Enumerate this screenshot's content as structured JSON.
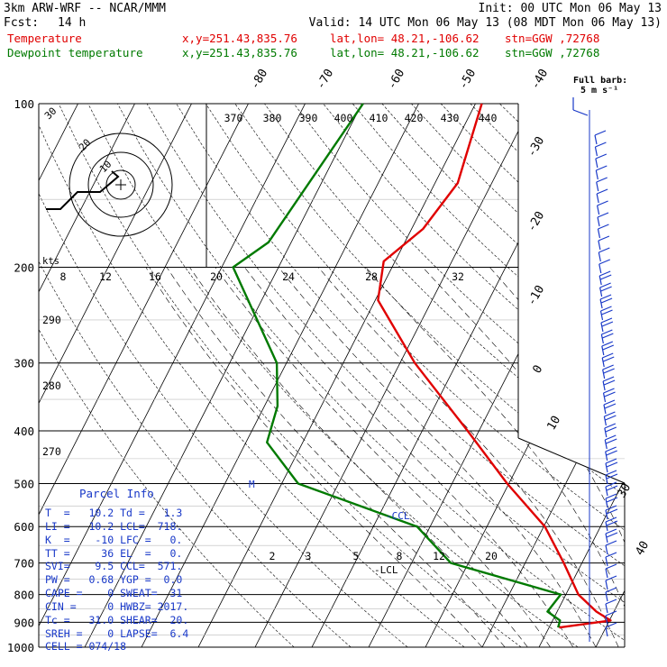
{
  "header": {
    "model": "3km ARW-WRF -- NCAR/MMM",
    "init": "Init: 00 UTC Mon 06 May 13",
    "fcst_label": "Fcst:",
    "fcst_value": "14 h",
    "valid": "Valid: 14 UTC Mon 06 May 13 (08 MDT Mon 06 May 13)",
    "legend": [
      {
        "label": "Temperature",
        "xy": "x,y=251.43,835.76",
        "latlon": "lat,lon= 48.21,-106.62",
        "stn": "stn=GGW ,72768",
        "color": "#e00000"
      },
      {
        "label": "Dewpoint temperature",
        "xy": "x,y=251.43,835.76",
        "latlon": "lat,lon= 48.21,-106.62",
        "stn": "stn=GGW ,72768",
        "color": "#007a00"
      }
    ]
  },
  "barb_legend": {
    "line1": "Full barb:",
    "line2": "5 m s⁻¹"
  },
  "hodograph": {
    "units": "kts",
    "ring_labels": [
      "10",
      "20",
      "30"
    ]
  },
  "chart_data": {
    "type": "line",
    "title": "",
    "xlabel": "",
    "ylabel": "",
    "pressure_levels": [
      100,
      200,
      300,
      400,
      500,
      600,
      700,
      800,
      900,
      1000
    ],
    "pressure_labels": [
      "100",
      "200",
      "300",
      "400",
      "500",
      "600",
      "700",
      "800",
      "900",
      "1000"
    ],
    "isotherm_labels": [
      "-80",
      "-70",
      "-60",
      "-50",
      "-40",
      "-30",
      "-20",
      "-10",
      "0",
      "10",
      "30",
      "40"
    ],
    "theta_labels": [
      "370",
      "380",
      "390",
      "400",
      "410",
      "420",
      "430",
      "440"
    ],
    "mixing_ratio_labels_top": [
      "8",
      "12",
      "16",
      "20",
      "24",
      "28",
      "32"
    ],
    "mixing_ratio_labels_low": [
      "2",
      "3",
      "5",
      "8",
      "12",
      "20"
    ],
    "left_theta_labels": [
      "290",
      "280",
      "270"
    ],
    "annotations": [
      "-CCL",
      "-LCL",
      "M"
    ],
    "series": [
      {
        "name": "Temperature",
        "color": "#e00000",
        "points": [
          [
            100,
            -58.9
          ],
          [
            140,
            -56.0
          ],
          [
            170,
            -58.0
          ],
          [
            195,
            -62.0
          ],
          [
            230,
            -59.5
          ],
          [
            300,
            -47.4
          ],
          [
            400,
            -32.0
          ],
          [
            500,
            -20.3
          ],
          [
            600,
            -9.8
          ],
          [
            700,
            -3.2
          ],
          [
            800,
            2.2
          ],
          [
            860,
            6.9
          ],
          [
            893,
            10.2
          ],
          [
            920,
            1.8
          ]
        ]
      },
      {
        "name": "Dewpoint temperature",
        "color": "#007a00",
        "points": [
          [
            100,
            -79.8
          ],
          [
            180,
            -84.0
          ],
          [
            200,
            -88.0
          ],
          [
            300,
            -71.7
          ],
          [
            360,
            -67.7
          ],
          [
            420,
            -66.3
          ],
          [
            500,
            -57.1
          ],
          [
            600,
            -32.3
          ],
          [
            700,
            -23.1
          ],
          [
            800,
            -0.9
          ],
          [
            860,
            -1.7
          ],
          [
            893,
            1.3
          ],
          [
            920,
            1.6
          ]
        ]
      }
    ]
  },
  "parcel": {
    "title": "Parcel Info",
    "rows": [
      "T  =   10.2 Td =   1.3",
      "LI =   10.2 LCL=  718.",
      "K  =    -10 LFC =   0.",
      "TT =     36 EL  =   0.",
      "SVI=    9.5 CCL=  571.",
      "PW =   0.68 YGP =  0.0",
      "CAPE =    0 SWEAT=  31",
      "CIN =     0 HWBZ= 2017.",
      "Tc =   31.0 SHEAR=  20.",
      "SREH =    0 LAPSE=  6.4",
      "CELL = 074/18"
    ]
  }
}
